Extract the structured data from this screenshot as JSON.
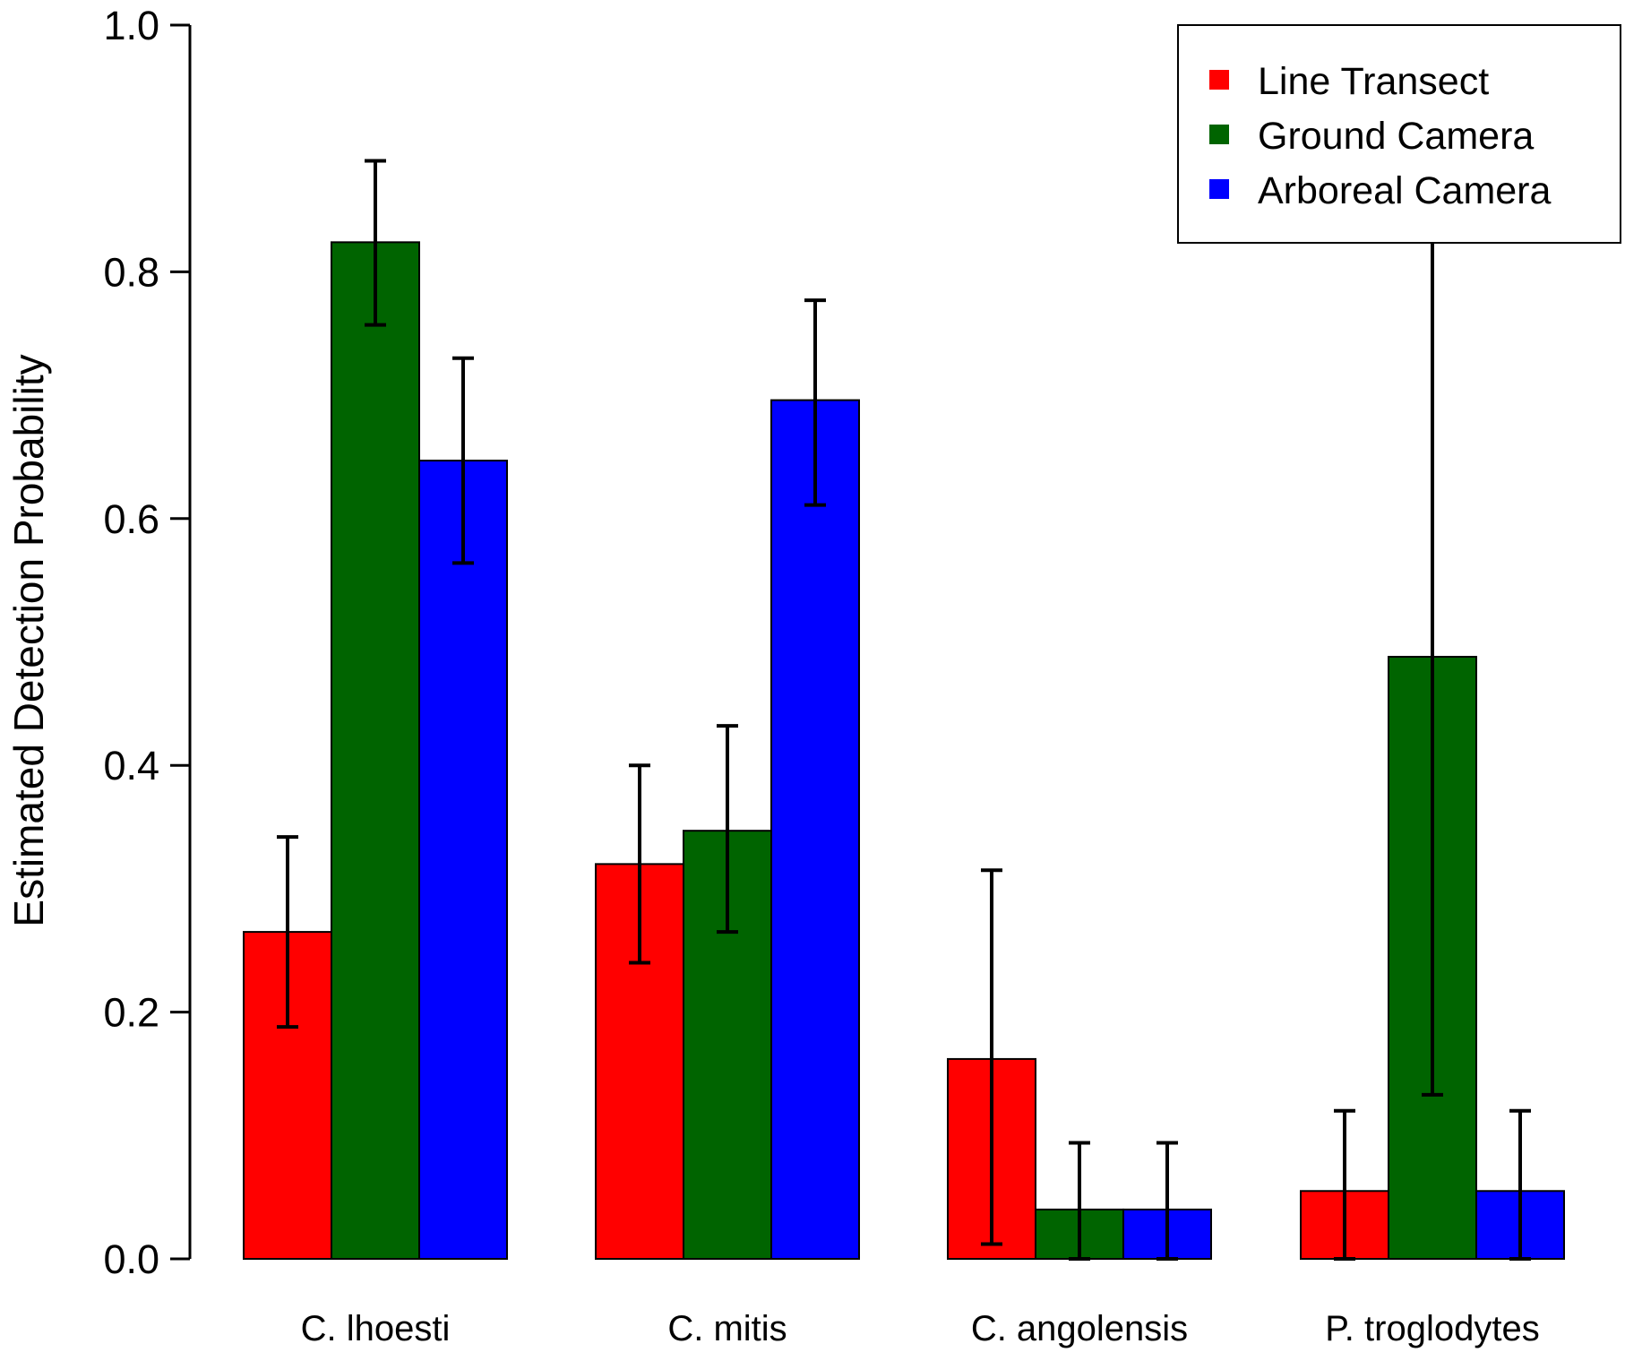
{
  "chart_data": {
    "type": "bar",
    "title": "",
    "xlabel": "",
    "ylabel": "Estimated Detection Probability",
    "ylim": [
      0,
      1
    ],
    "yticks": [
      "0.0",
      "0.2",
      "0.4",
      "0.6",
      "0.8",
      "1.0"
    ],
    "categories": [
      "C. lhoesti",
      "C. mitis",
      "C. angolensis",
      "P. troglodytes"
    ],
    "series": [
      {
        "name": "Line Transect",
        "color": "#ff0000",
        "values": [
          0.265,
          0.32,
          0.162,
          0.055
        ],
        "error_low": [
          0.188,
          0.24,
          0.012,
          0.0
        ],
        "error_high": [
          0.342,
          0.4,
          0.315,
          0.12
        ]
      },
      {
        "name": "Ground Camera",
        "color": "#006400",
        "values": [
          0.824,
          0.347,
          0.04,
          0.488
        ],
        "error_low": [
          0.757,
          0.265,
          0.0,
          0.133
        ],
        "error_high": [
          0.89,
          0.432,
          0.094,
          0.843
        ]
      },
      {
        "name": "Arboreal Camera",
        "color": "#0000ff",
        "values": [
          0.647,
          0.696,
          0.04,
          0.055
        ],
        "error_low": [
          0.564,
          0.611,
          0.0,
          0.0
        ],
        "error_high": [
          0.73,
          0.777,
          0.094,
          0.12
        ]
      }
    ],
    "legend": {
      "position": "top-right",
      "entries": [
        "Line Transect",
        "Ground Camera",
        "Arboreal Camera"
      ]
    },
    "grid": false,
    "error_bars": true
  }
}
